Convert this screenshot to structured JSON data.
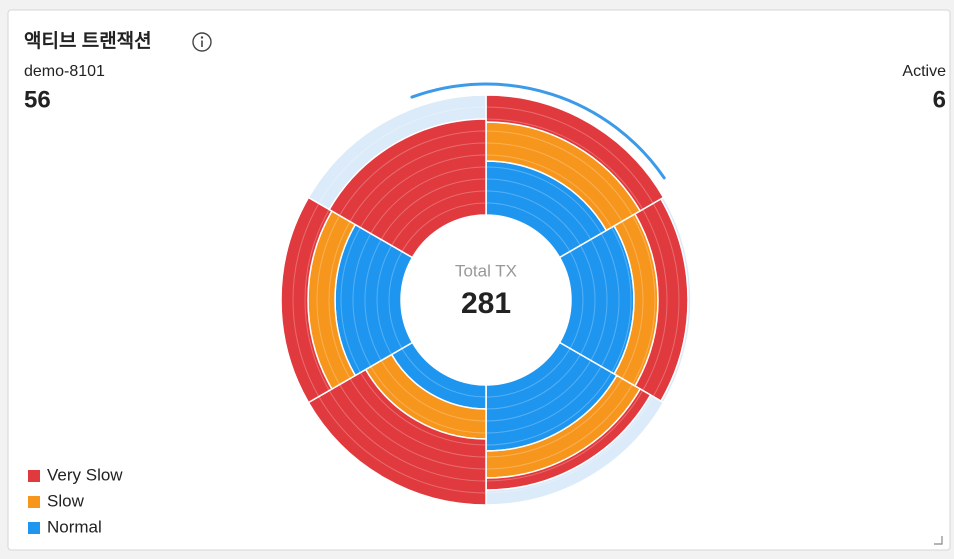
{
  "chart_data": {
    "type": "radial-stacked",
    "title": "액티브 트랜잭션",
    "left_label": "demo-8101",
    "left_value": 56,
    "right_label": "Active",
    "right_value": 6,
    "center_label": "Total TX",
    "center_value": 281,
    "rlim": [
      0,
      40
    ],
    "series": [
      {
        "name": "Very Slow",
        "color": "#e03a3e",
        "values": [
          9,
          10,
          4,
          22,
          9,
          32
        ]
      },
      {
        "name": "Slow",
        "color": "#f7961c",
        "values": [
          13,
          8,
          9,
          10,
          9,
          0
        ]
      },
      {
        "name": "Normal",
        "color": "#1e96f0",
        "values": [
          18,
          21,
          22,
          8,
          22,
          0
        ]
      }
    ]
  }
}
